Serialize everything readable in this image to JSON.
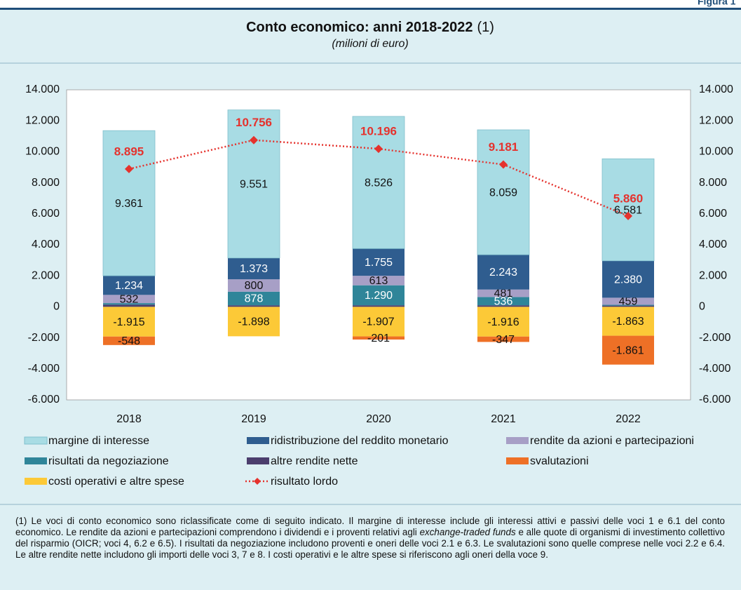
{
  "figure_label": "Figura 1",
  "chart_data": {
    "type": "bar",
    "stacked": true,
    "title": "Conto economico: anni 2018-2022",
    "title_note": "(1)",
    "subtitle": "(milioni di euro)",
    "categories": [
      "2018",
      "2019",
      "2020",
      "2021",
      "2022"
    ],
    "series": [
      {
        "name": "altre rendite nette",
        "color": "#4b3e6d",
        "values": [
          140,
          100,
          100,
          100,
          80
        ],
        "value_labels": [
          null,
          null,
          null,
          null,
          null
        ]
      },
      {
        "name": "risultati da negoziazione",
        "color": "#2f8599",
        "values": [
          100,
          878,
          1290,
          536,
          50
        ],
        "value_labels": [
          null,
          "878",
          "1.290",
          "536",
          null
        ]
      },
      {
        "name": "rendite da azioni e partecipazioni",
        "color": "#a79fc6",
        "values": [
          532,
          800,
          613,
          481,
          459
        ],
        "value_labels": [
          "532",
          "800",
          "613",
          "481",
          "459"
        ]
      },
      {
        "name": "ridistribuzione del reddito monetario",
        "color": "#2f5d8f",
        "values": [
          1234,
          1373,
          1755,
          2243,
          2380
        ],
        "value_labels": [
          "1.234",
          "1.373",
          "1.755",
          "2.243",
          "2.380"
        ]
      },
      {
        "name": "margine di interesse",
        "color": "#a8dce4",
        "values": [
          9361,
          9551,
          8526,
          8059,
          6581
        ],
        "value_labels": [
          "9.361",
          "9.551",
          "8.526",
          "8.059",
          "6.581"
        ]
      },
      {
        "name": "costi operativi e altre spese",
        "color": "#fcc937",
        "values": [
          -1915,
          -1898,
          -1907,
          -1916,
          -1863
        ],
        "value_labels": [
          "-1.915",
          "-1.898",
          "-1.907",
          "-1.916",
          "-1.863"
        ]
      },
      {
        "name": "svalutazioni",
        "color": "#ee7026",
        "values": [
          -548,
          null,
          -201,
          -347,
          -1861
        ],
        "value_labels": [
          "-548",
          null,
          "-201",
          "-347",
          "-1.861"
        ]
      },
      {
        "name": "risultato lordo",
        "type": "line",
        "color": "#e5322d",
        "values": [
          8895,
          10756,
          10196,
          9181,
          5860
        ],
        "value_labels": [
          "8.895",
          "10.756",
          "10.196",
          "9.181",
          "5.860"
        ]
      }
    ],
    "legend_order": [
      4,
      3,
      2,
      1,
      0,
      6,
      5,
      7
    ],
    "ylim": [
      -6000,
      14000
    ],
    "yticks": [
      {
        "value": -6000,
        "label": "-6.000"
      },
      {
        "value": -4000,
        "label": "-4.000"
      },
      {
        "value": -2000,
        "label": "-2.000"
      },
      0,
      {
        "value": 2000,
        "label": "2.000"
      },
      {
        "value": 4000,
        "label": "4.000"
      },
      {
        "value": 6000,
        "label": "6.000"
      },
      {
        "value": 8000,
        "label": "8.000"
      },
      {
        "value": 10000,
        "label": "10.000"
      },
      {
        "value": 12000,
        "label": "12.000"
      },
      {
        "value": 14000,
        "label": "14.000"
      }
    ],
    "y2lim": [
      -6000,
      14000
    ],
    "y2ticks": [
      {
        "value": -6000,
        "label": "-6.000"
      },
      {
        "value": -4000,
        "label": "-4.000"
      },
      {
        "value": -2000,
        "label": "-2.000"
      },
      0,
      {
        "value": 2000,
        "label": "2.000"
      },
      {
        "value": 4000,
        "label": "4.000"
      },
      {
        "value": 6000,
        "label": "6.000"
      },
      {
        "value": 8000,
        "label": "8.000"
      },
      {
        "value": 10000,
        "label": "10.000"
      },
      {
        "value": 12000,
        "label": "12.000"
      },
      {
        "value": 14000,
        "label": "14.000"
      }
    ],
    "grid": false
  },
  "note": [
    "(1) Le voci di conto economico sono riclassificate come di seguito indicato. Il margine di interesse include gli interessi attivi e passivi delle voci 1 e 6.1 del conto economico. Le rendite da azioni e partecipazioni comprendono i dividendi e i proventi relativi agli ",
    "exchange-traded funds",
    " e alle quote di organismi di investimento collettivo del risparmio (OICR; voci 4, 6.2 e 6.5). I risultati da negoziazione includono proventi e oneri delle voci 2.1 e 6.3. Le svalutazioni sono quelle comprese nelle voci 2.2 e 6.4. Le altre rendite nette includono gli importi delle voci 3, 7 e 8. I costi operativi e le altre spese si riferiscono agli oneri della voce 9."
  ]
}
